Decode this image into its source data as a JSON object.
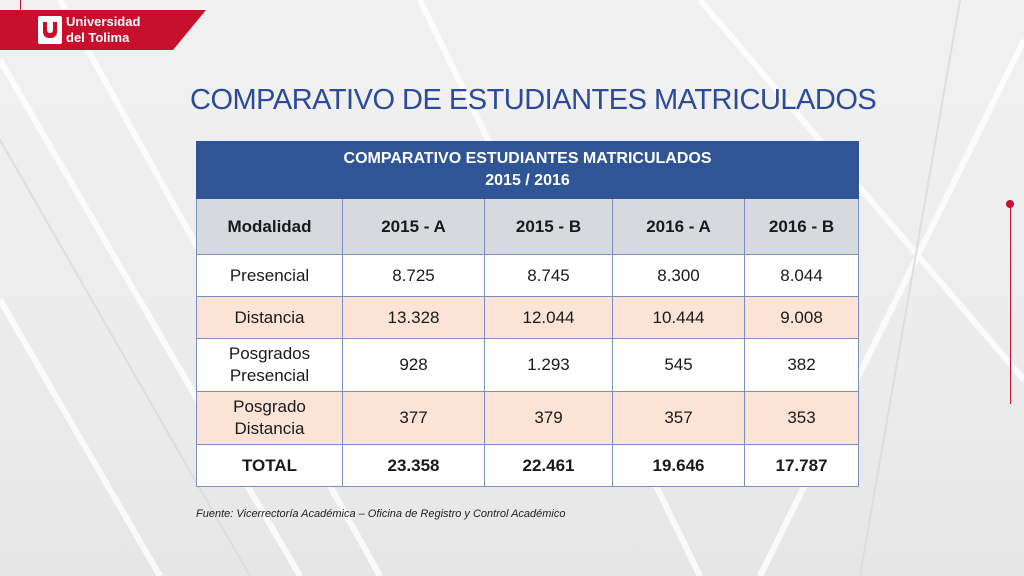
{
  "logo": {
    "line1": "Universidad",
    "line2": "del Tolima"
  },
  "title": "COMPARATIVO DE ESTUDIANTES MATRICULADOS",
  "table": {
    "header_line1": "COMPARATIVO ESTUDIANTES MATRICULADOS",
    "header_line2": "2015 / 2016",
    "columns": [
      "Modalidad",
      "2015 - A",
      "2015 - B",
      "2016 - A",
      "2016 - B"
    ],
    "rows": [
      {
        "label": [
          "Presencial"
        ],
        "values": [
          "8.725",
          "8.745",
          "8.300",
          "8.044"
        ]
      },
      {
        "label": [
          "Distancia"
        ],
        "values": [
          "13.328",
          "12.044",
          "10.444",
          "9.008"
        ]
      },
      {
        "label": [
          "Posgrados",
          "Presencial"
        ],
        "values": [
          "928",
          "1.293",
          "545",
          "382"
        ]
      },
      {
        "label": [
          "Posgrado",
          "Distancia"
        ],
        "values": [
          "377",
          "379",
          "357",
          "353"
        ]
      },
      {
        "label": [
          "TOTAL"
        ],
        "values": [
          "23.358",
          "22.461",
          "19.646",
          "17.787"
        ]
      }
    ]
  },
  "source": "Fuente: Vicerrectoría Académica – Oficina de Registro y Control Académico",
  "colors": {
    "brand_red": "#c8102e",
    "header_blue": "#2f5597",
    "title_blue": "#2c4a9a",
    "row_alt": "#fbe3d6",
    "col_header": "#d6d9de"
  }
}
